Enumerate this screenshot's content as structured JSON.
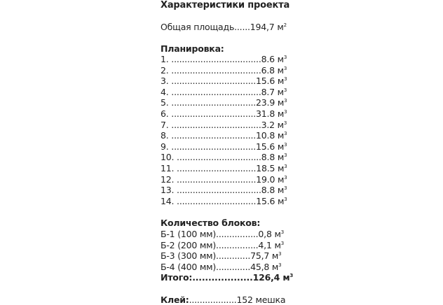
{
  "title": "Характеристики проекта",
  "area": {
    "label": "Общая площадь......194,7 м",
    "sup": "2"
  },
  "layout": {
    "heading": "Планировка:",
    "unit_sup": "3",
    "items": [
      "1. ..................................8.6 м",
      "2. ..................................6.8 м",
      "3. ................................15.6 м",
      "4. ..................................8.7 м",
      "5. ................................23.9 м",
      "6. ................................31.8 м",
      "7. ..................................3.2 м",
      "8. ................................10.8 м",
      "9. ................................15.6 м",
      "10. ................................8.8 м",
      "11. ..............................18.5 м",
      "12. ..............................19.0 м",
      "13. ................................8.8 м",
      "14. ..............................15.6 м"
    ]
  },
  "blocks": {
    "heading": "Количество блоков:",
    "items": [
      "Б-1 (100 мм)................0,8 м",
      "Б-2 (200 мм)................4,1 м",
      "Б-3 (300 мм).............75,7 м",
      "Б-4 (400 мм).............45,8 м"
    ],
    "total": "Итого:...................126,4 м"
  },
  "glue": {
    "label": "Клей:",
    "value": "..................152 мешка"
  }
}
